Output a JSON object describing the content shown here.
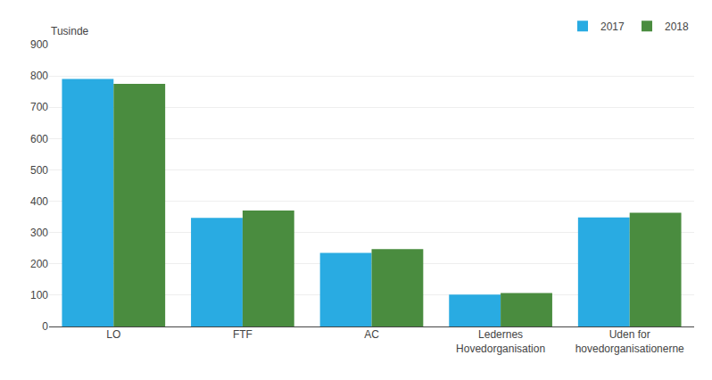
{
  "chart_data": {
    "type": "bar",
    "categories": [
      "LO",
      "FTF",
      "AC",
      "Ledernes\nHovedorganisation",
      "Uden for\nhovedorganisationerne"
    ],
    "series": [
      {
        "name": "2017",
        "color": "#29ABE2",
        "values": [
          790,
          347,
          235,
          102,
          348
        ]
      },
      {
        "name": "2018",
        "color": "#4A8C3F",
        "values": [
          775,
          370,
          247,
          107,
          363
        ]
      }
    ],
    "ylabel": "Tusinde",
    "ylim": [
      0,
      900
    ],
    "yticks": [
      0,
      100,
      200,
      300,
      400,
      500,
      600,
      700,
      800,
      900
    ],
    "grid": true,
    "legend": "upper right"
  }
}
